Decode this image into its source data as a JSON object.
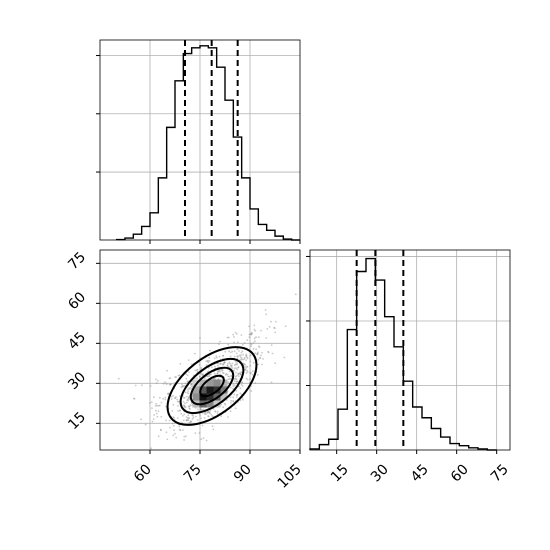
{
  "chart_data": {
    "type": "corner",
    "panels": [
      {
        "id": "hist-x",
        "type": "histogram",
        "xlim": [
          45,
          105
        ],
        "grid": true,
        "xticks": [
          60,
          75,
          90,
          105
        ],
        "bin_edges": [
          50,
          52.5,
          55,
          57.5,
          60,
          62.5,
          65,
          67.5,
          70,
          72.5,
          75,
          77.5,
          80,
          82.5,
          85,
          87.5,
          90,
          92.5,
          95,
          97.5,
          100,
          102.5,
          105
        ],
        "counts": [
          0.2,
          1,
          3,
          7,
          14,
          32,
          58,
          82,
          96,
          99,
          100,
          99,
          89,
          72,
          53,
          32,
          16,
          8,
          5,
          2,
          0.5,
          0
        ],
        "quantile_lines": [
          70.5,
          78.5,
          86.3
        ],
        "ytick_positions": [
          95,
          65,
          35
        ]
      },
      {
        "id": "scatter-xy",
        "type": "2d-density",
        "xlim": [
          45,
          105
        ],
        "ylim": [
          5,
          80
        ],
        "grid": true,
        "xticks": [
          60,
          75,
          90,
          105
        ],
        "yticks": [
          15,
          30,
          45,
          60,
          75
        ],
        "tick_labels_x": [
          "60",
          "75",
          "90",
          "105"
        ],
        "tick_labels_y": [
          "15",
          "30",
          "45",
          "60",
          "75"
        ],
        "density_center": [
          78.5,
          28
        ],
        "density_peak": [
          78,
          27.5
        ],
        "n_points_shown": 900
      },
      {
        "id": "hist-y",
        "type": "histogram",
        "xlim": [
          5,
          80
        ],
        "grid": true,
        "xticks": [
          15,
          30,
          45,
          60,
          75
        ],
        "tick_labels": [
          "15",
          "30",
          "45",
          "60",
          "75"
        ],
        "bin_edges": [
          5,
          8.5,
          12,
          15.5,
          19,
          22.5,
          26,
          29.5,
          33,
          36.5,
          40,
          43.5,
          47,
          50.5,
          54,
          57.5,
          61,
          64.5,
          68,
          71.5,
          75
        ],
        "counts": [
          0.5,
          2.5,
          5,
          19,
          56,
          83,
          89,
          79,
          62,
          48,
          32,
          20,
          15,
          10,
          6,
          3,
          2,
          1,
          0.5,
          0
        ],
        "quantile_lines": [
          22.5,
          29.5,
          40
        ],
        "ytick_positions": [
          90,
          60,
          30
        ]
      }
    ]
  }
}
